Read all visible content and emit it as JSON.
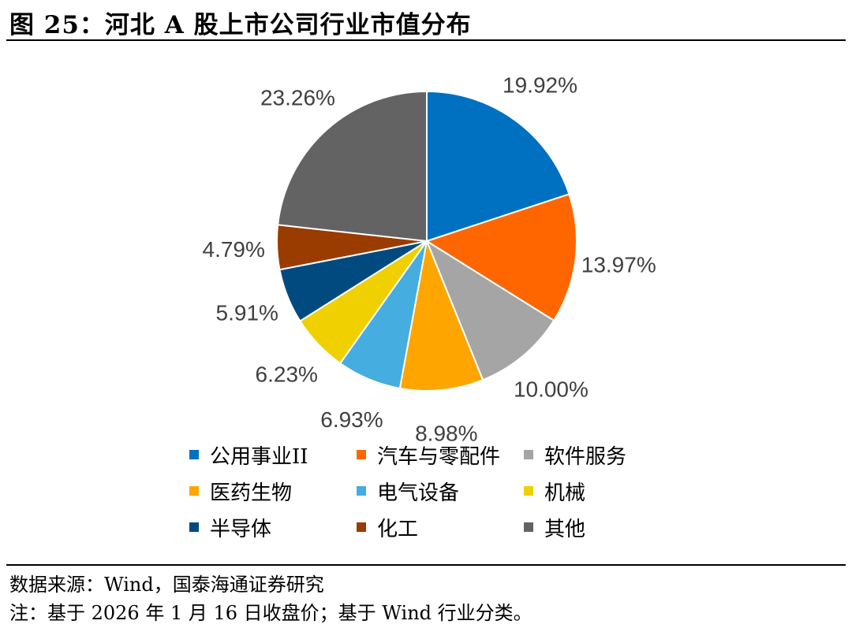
{
  "title": "图 25：河北 A 股上市公司行业市值分布",
  "chart_data": {
    "type": "pie",
    "categories": [
      "公用事业II",
      "汽车与零配件",
      "软件服务",
      "医药生物",
      "电气设备",
      "机械",
      "半导体",
      "化工",
      "其他"
    ],
    "values": [
      19.92,
      13.97,
      10.0,
      8.98,
      6.93,
      6.23,
      5.91,
      4.79,
      23.26
    ],
    "labels": [
      "19.92%",
      "13.97%",
      "10.00%",
      "8.98%",
      "6.93%",
      "6.23%",
      "5.91%",
      "4.79%",
      "23.26%"
    ],
    "colors": [
      "#0070C0",
      "#FF6600",
      "#A5A5A5",
      "#FFA500",
      "#45ADE0",
      "#F0D000",
      "#004A80",
      "#9A3B00",
      "#636363"
    ],
    "legend_position": "bottom",
    "start": "12 o'clock, clockwise"
  },
  "source": "数据来源：Wind，国泰海通证券研究",
  "note": "注：基于 2026 年 1 月 16 日收盘价；基于 Wind 行业分类。"
}
